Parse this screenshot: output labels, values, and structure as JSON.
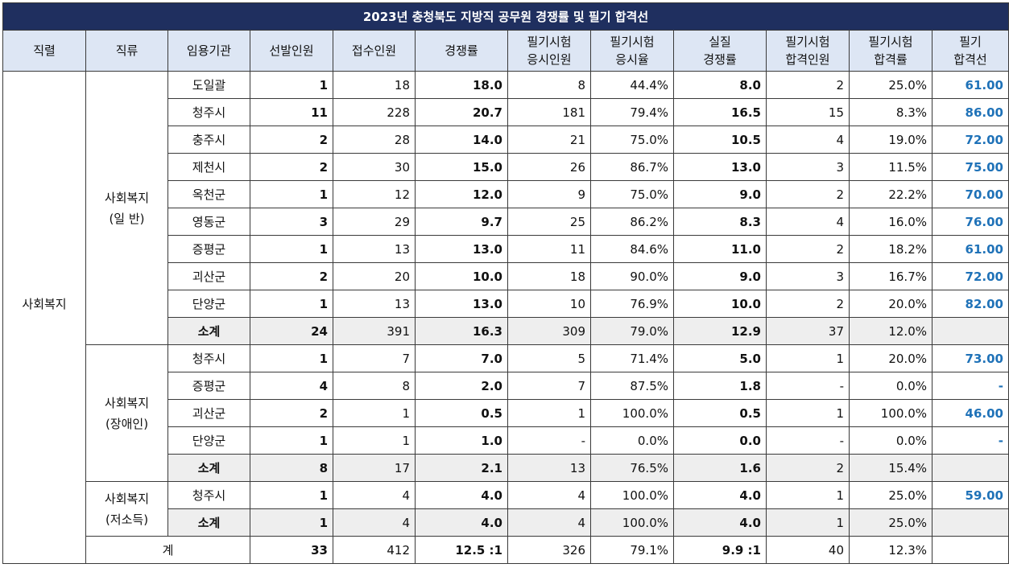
{
  "title": "2023년 충청북도 지방직 공무원 경쟁률 및 필기 합격선",
  "headers": [
    "직렬",
    "직류",
    "임용기관",
    "선발인원",
    "접수인원",
    "경쟁률",
    "필기시험\n응시인원",
    "필기시험\n응시율",
    "실질\n경쟁률",
    "필기시험\n합격인원",
    "필기시험\n합격률",
    "필기\n합격선"
  ],
  "series_name": "사회복지",
  "groups": [
    {
      "label": "사회복지\n(일 반)",
      "rows": [
        {
          "org": "도일괄",
          "sel": "1",
          "app": "18",
          "rate": "18.0",
          "takers": "8",
          "take_rate": "44.4%",
          "real": "8.0",
          "pass": "2",
          "pass_rate": "25.0%",
          "cut": "61.00"
        },
        {
          "org": "청주시",
          "sel": "11",
          "app": "228",
          "rate": "20.7",
          "takers": "181",
          "take_rate": "79.4%",
          "real": "16.5",
          "pass": "15",
          "pass_rate": "8.3%",
          "cut": "86.00"
        },
        {
          "org": "충주시",
          "sel": "2",
          "app": "28",
          "rate": "14.0",
          "takers": "21",
          "take_rate": "75.0%",
          "real": "10.5",
          "pass": "4",
          "pass_rate": "19.0%",
          "cut": "72.00"
        },
        {
          "org": "제천시",
          "sel": "2",
          "app": "30",
          "rate": "15.0",
          "takers": "26",
          "take_rate": "86.7%",
          "real": "13.0",
          "pass": "3",
          "pass_rate": "11.5%",
          "cut": "75.00"
        },
        {
          "org": "옥천군",
          "sel": "1",
          "app": "12",
          "rate": "12.0",
          "takers": "9",
          "take_rate": "75.0%",
          "real": "9.0",
          "pass": "2",
          "pass_rate": "22.2%",
          "cut": "70.00"
        },
        {
          "org": "영동군",
          "sel": "3",
          "app": "29",
          "rate": "9.7",
          "takers": "25",
          "take_rate": "86.2%",
          "real": "8.3",
          "pass": "4",
          "pass_rate": "16.0%",
          "cut": "76.00"
        },
        {
          "org": "증평군",
          "sel": "1",
          "app": "13",
          "rate": "13.0",
          "takers": "11",
          "take_rate": "84.6%",
          "real": "11.0",
          "pass": "2",
          "pass_rate": "18.2%",
          "cut": "61.00"
        },
        {
          "org": "괴산군",
          "sel": "2",
          "app": "20",
          "rate": "10.0",
          "takers": "18",
          "take_rate": "90.0%",
          "real": "9.0",
          "pass": "3",
          "pass_rate": "16.7%",
          "cut": "72.00"
        },
        {
          "org": "단양군",
          "sel": "1",
          "app": "13",
          "rate": "13.0",
          "takers": "10",
          "take_rate": "76.9%",
          "real": "10.0",
          "pass": "2",
          "pass_rate": "20.0%",
          "cut": "82.00"
        }
      ],
      "subtotal": {
        "org": "소계",
        "sel": "24",
        "app": "391",
        "rate": "16.3",
        "takers": "309",
        "take_rate": "79.0%",
        "real": "12.9",
        "pass": "37",
        "pass_rate": "12.0%",
        "cut": ""
      }
    },
    {
      "label": "사회복지\n(장애인)",
      "rows": [
        {
          "org": "청주시",
          "sel": "1",
          "app": "7",
          "rate": "7.0",
          "takers": "5",
          "take_rate": "71.4%",
          "real": "5.0",
          "pass": "1",
          "pass_rate": "20.0%",
          "cut": "73.00"
        },
        {
          "org": "증평군",
          "sel": "4",
          "app": "8",
          "rate": "2.0",
          "takers": "7",
          "take_rate": "87.5%",
          "real": "1.8",
          "pass": "-",
          "pass_rate": "0.0%",
          "cut": "-"
        },
        {
          "org": "괴산군",
          "sel": "2",
          "app": "1",
          "rate": "0.5",
          "takers": "1",
          "take_rate": "100.0%",
          "real": "0.5",
          "pass": "1",
          "pass_rate": "100.0%",
          "cut": "46.00"
        },
        {
          "org": "단양군",
          "sel": "1",
          "app": "1",
          "rate": "1.0",
          "takers": "-",
          "take_rate": "0.0%",
          "real": "0.0",
          "pass": "-",
          "pass_rate": "0.0%",
          "cut": "-"
        }
      ],
      "subtotal": {
        "org": "소계",
        "sel": "8",
        "app": "17",
        "rate": "2.1",
        "takers": "13",
        "take_rate": "76.5%",
        "real": "1.6",
        "pass": "2",
        "pass_rate": "15.4%",
        "cut": ""
      }
    },
    {
      "label": "사회복지\n(저소득)",
      "rows": [
        {
          "org": "청주시",
          "sel": "1",
          "app": "4",
          "rate": "4.0",
          "takers": "4",
          "take_rate": "100.0%",
          "real": "4.0",
          "pass": "1",
          "pass_rate": "25.0%",
          "cut": "59.00"
        }
      ],
      "subtotal": {
        "org": "소계",
        "sel": "1",
        "app": "4",
        "rate": "4.0",
        "takers": "4",
        "take_rate": "100.0%",
        "real": "4.0",
        "pass": "1",
        "pass_rate": "25.0%",
        "cut": ""
      }
    }
  ],
  "total": {
    "label": "계",
    "sel": "33",
    "app": "412",
    "rate": "12.5 :1",
    "takers": "326",
    "take_rate": "79.1%",
    "real": "9.9 :1",
    "pass": "40",
    "pass_rate": "12.3%",
    "cut": ""
  },
  "colors": {
    "title_bg": "#1f2f5f",
    "header_bg": "#dde6f4",
    "subtotal_bg": "#eeeeee",
    "cut_text": "#1f72b8"
  }
}
